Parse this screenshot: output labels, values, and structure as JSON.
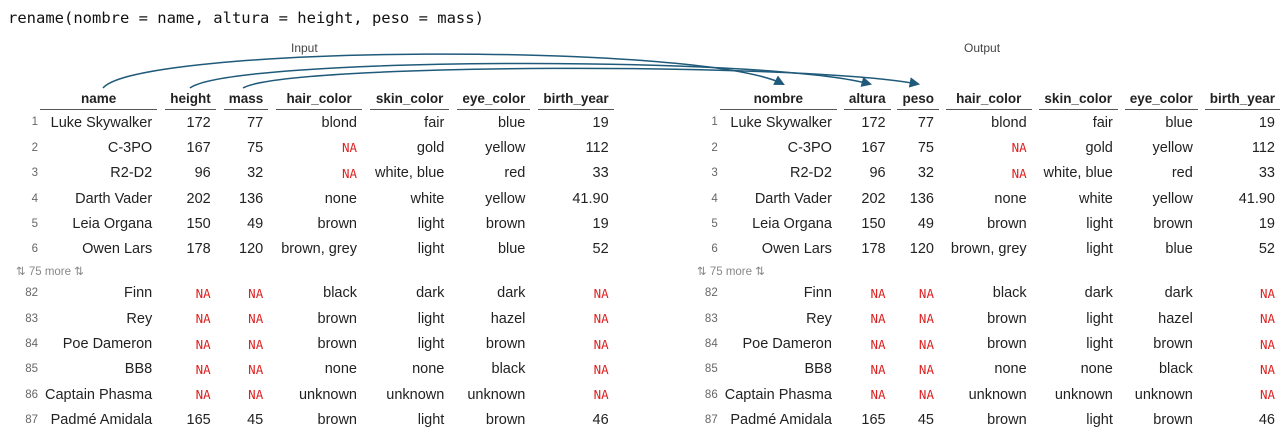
{
  "code_line": "rename(nombre = name, altura = height, peso = mass)",
  "input_label": "Input",
  "output_label": "Output",
  "more_label": "⇅ 75 more ⇅",
  "input_columns": [
    "name",
    "height",
    "mass",
    "hair_color",
    "skin_color",
    "eye_color",
    "birth_year"
  ],
  "output_columns": [
    "nombre",
    "altura",
    "peso",
    "hair_color",
    "skin_color",
    "eye_color",
    "birth_year"
  ],
  "rows_top": [
    {
      "idx": "1",
      "cells": [
        "Luke Skywalker",
        "172",
        "77",
        "blond",
        "fair",
        "blue",
        "19"
      ]
    },
    {
      "idx": "2",
      "cells": [
        "C-3PO",
        "167",
        "75",
        "NA",
        "gold",
        "yellow",
        "112"
      ]
    },
    {
      "idx": "3",
      "cells": [
        "R2-D2",
        "96",
        "32",
        "NA",
        "white, blue",
        "red",
        "33"
      ]
    },
    {
      "idx": "4",
      "cells": [
        "Darth Vader",
        "202",
        "136",
        "none",
        "white",
        "yellow",
        "41.90"
      ]
    },
    {
      "idx": "5",
      "cells": [
        "Leia Organa",
        "150",
        "49",
        "brown",
        "light",
        "brown",
        "19"
      ]
    },
    {
      "idx": "6",
      "cells": [
        "Owen Lars",
        "178",
        "120",
        "brown, grey",
        "light",
        "blue",
        "52"
      ]
    }
  ],
  "rows_bottom": [
    {
      "idx": "82",
      "cells": [
        "Finn",
        "NA",
        "NA",
        "black",
        "dark",
        "dark",
        "NA"
      ]
    },
    {
      "idx": "83",
      "cells": [
        "Rey",
        "NA",
        "NA",
        "brown",
        "light",
        "hazel",
        "NA"
      ]
    },
    {
      "idx": "84",
      "cells": [
        "Poe Dameron",
        "NA",
        "NA",
        "brown",
        "light",
        "brown",
        "NA"
      ]
    },
    {
      "idx": "85",
      "cells": [
        "BB8",
        "NA",
        "NA",
        "none",
        "none",
        "black",
        "NA"
      ]
    },
    {
      "idx": "86",
      "cells": [
        "Captain Phasma",
        "NA",
        "NA",
        "unknown",
        "unknown",
        "unknown",
        "NA"
      ]
    },
    {
      "idx": "87",
      "cells": [
        "Padmé Amidala",
        "165",
        "45",
        "brown",
        "light",
        "brown",
        "46"
      ]
    }
  ],
  "colors": {
    "arrow": "#1f5a7a",
    "na": "#dd2222"
  }
}
